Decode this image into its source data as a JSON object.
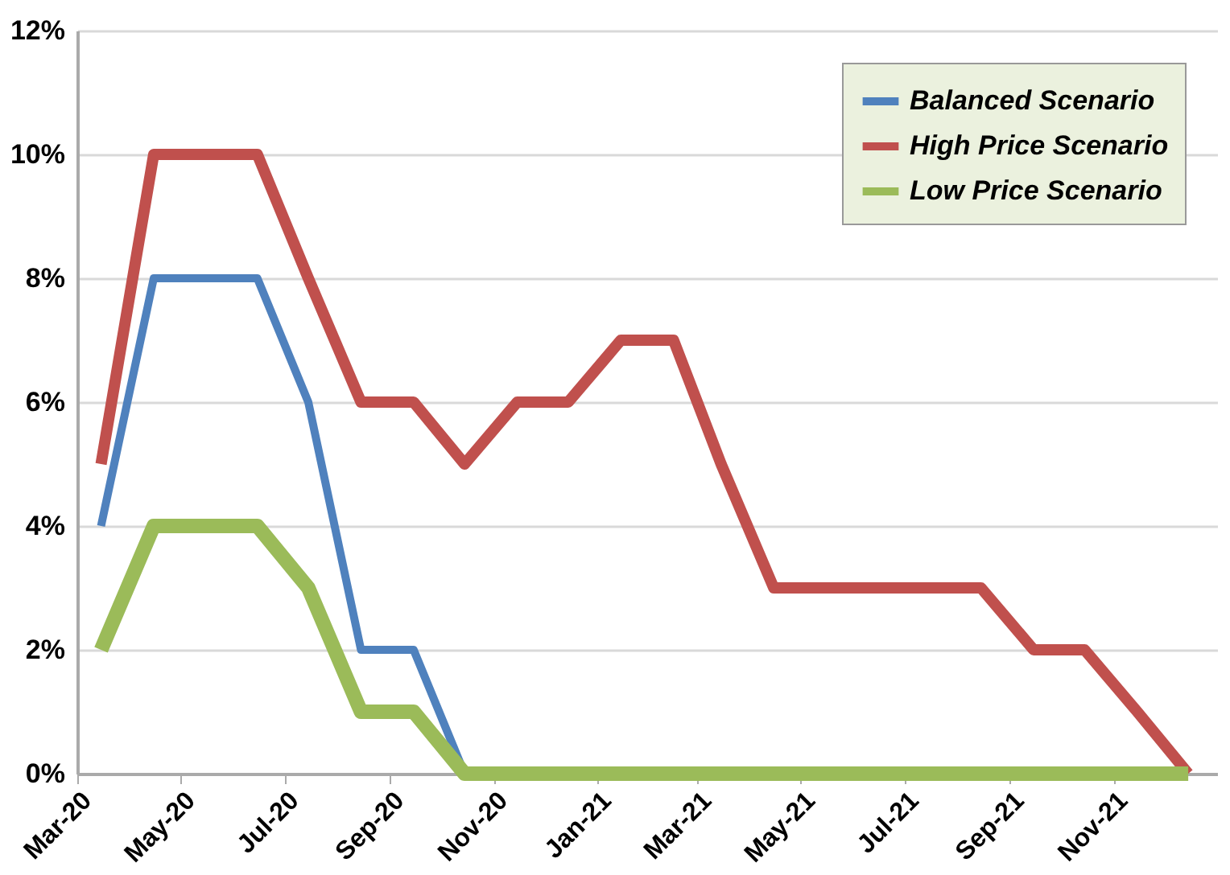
{
  "chart_data": {
    "type": "line",
    "x": [
      "2020-03-15",
      "2020-04-15",
      "2020-05-15",
      "2020-06-15",
      "2020-07-15",
      "2020-08-15",
      "2020-09-15",
      "2020-10-15",
      "2020-11-15",
      "2020-12-15",
      "2021-01-15",
      "2021-02-15",
      "2021-03-15",
      "2021-04-15",
      "2021-05-15",
      "2021-06-15",
      "2021-07-15",
      "2021-08-15",
      "2021-09-15",
      "2021-10-15",
      "2021-11-15",
      "2021-12-15"
    ],
    "series": [
      {
        "name": "Balanced Scenario",
        "color": "#4f81bd",
        "values": [
          4,
          8,
          8,
          8,
          6,
          2,
          2,
          0,
          null,
          null,
          null,
          null,
          null,
          null,
          null,
          null,
          null,
          null,
          null,
          null,
          null,
          null
        ]
      },
      {
        "name": "High Price Scenario",
        "color": "#c0504d",
        "values": [
          5,
          10,
          10,
          10,
          8,
          6,
          6,
          5,
          6,
          6,
          7,
          7,
          5,
          3,
          3,
          3,
          3,
          3,
          2,
          2,
          1,
          0
        ]
      },
      {
        "name": "Low Price Scenario",
        "color": "#9bbb59",
        "values": [
          2,
          4,
          4,
          4,
          3,
          1,
          1,
          0,
          0,
          0,
          0,
          0,
          0,
          0,
          0,
          0,
          0,
          0,
          0,
          0,
          0,
          0
        ]
      }
    ],
    "xlim": [
      "2020-03-01",
      "2022-01-01"
    ],
    "xticks": [
      {
        "value": "2020-03-01",
        "label": "Mar-20"
      },
      {
        "value": "2020-05-01",
        "label": "May-20"
      },
      {
        "value": "2020-07-01",
        "label": "Jul-20"
      },
      {
        "value": "2020-09-01",
        "label": "Sep-20"
      },
      {
        "value": "2020-11-01",
        "label": "Nov-20"
      },
      {
        "value": "2021-01-01",
        "label": "Jan-21"
      },
      {
        "value": "2021-03-01",
        "label": "Mar-21"
      },
      {
        "value": "2021-05-01",
        "label": "May-21"
      },
      {
        "value": "2021-07-01",
        "label": "Jul-21"
      },
      {
        "value": "2021-09-01",
        "label": "Sep-21"
      },
      {
        "value": "2021-11-01",
        "label": "Nov-21"
      }
    ],
    "ylim": [
      0,
      12
    ],
    "yticks": [
      {
        "value": 0,
        "label": "0%"
      },
      {
        "value": 2,
        "label": "2%"
      },
      {
        "value": 4,
        "label": "4%"
      },
      {
        "value": 6,
        "label": "6%"
      },
      {
        "value": 8,
        "label": "8%"
      },
      {
        "value": 10,
        "label": "10%"
      },
      {
        "value": 12,
        "label": "12%"
      }
    ],
    "grid": "y",
    "legend": "top right",
    "marker": "none",
    "line_style": "solid"
  }
}
